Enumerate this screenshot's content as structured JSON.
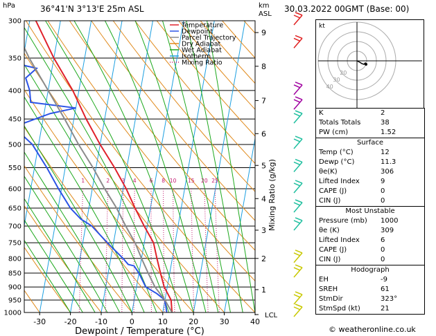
{
  "header": {
    "hpa_label": "hPa",
    "location": "36°41'N  3°13'E  25m  ASL",
    "km_label": "km",
    "asl_label": "ASL",
    "datetime": "30.03.2022  00GMT  (Base: 00)"
  },
  "footer": {
    "copyright": "© weatheronline.co.uk"
  },
  "chart_data": {
    "type": "line",
    "subtype": "skew-T log-p diagram",
    "xlabel": "Dewpoint / Temperature (°C)",
    "ylabel_right": "Mixing Ratio (g/kg)",
    "x_ticks": [
      -30,
      -20,
      -10,
      0,
      10,
      20,
      30,
      40
    ],
    "xlim": [
      -35,
      40
    ],
    "pressure_range": [
      300,
      1000
    ],
    "pressure_ticks": [
      300,
      350,
      400,
      450,
      500,
      550,
      600,
      650,
      700,
      750,
      800,
      850,
      900,
      950,
      1000
    ],
    "km_ticks": [
      {
        "km": "1",
        "p": 910
      },
      {
        "km": "2",
        "p": 800
      },
      {
        "km": "3",
        "p": 712
      },
      {
        "km": "4",
        "p": 625
      },
      {
        "km": "5",
        "p": 545
      },
      {
        "km": "6",
        "p": 478
      },
      {
        "km": "7",
        "p": 417
      },
      {
        "km": "8",
        "p": 362
      },
      {
        "km": "9",
        "p": 315
      }
    ],
    "lcl_label": "LCL",
    "lcl_p": 1000,
    "mixing_ratio_labels": [
      "1",
      "2",
      "3",
      "4",
      "6",
      "8",
      "10",
      "15",
      "20",
      "25"
    ],
    "mixing_ratio_label_p": 590,
    "legend": [
      {
        "name": "Temperature",
        "color": "#e0202a"
      },
      {
        "name": "Dewpoint",
        "color": "#2b53e6"
      },
      {
        "name": "Parcel Trajectory",
        "color": "#8a8a8a"
      },
      {
        "name": "Dry Adiabat",
        "color": "#e08a1c"
      },
      {
        "name": "Wet Adiabat",
        "color": "#1ca81c"
      },
      {
        "name": "Isotherm",
        "color": "#1c9fe0"
      },
      {
        "name": "Mixing Ratio",
        "color": "#c2186f"
      }
    ],
    "series": [
      {
        "name": "Temperature",
        "points": [
          [
            1000,
            13
          ],
          [
            950,
            12
          ],
          [
            900,
            9
          ],
          [
            850,
            7
          ],
          [
            800,
            5
          ],
          [
            750,
            3
          ],
          [
            700,
            -1
          ],
          [
            650,
            -5
          ],
          [
            600,
            -9
          ],
          [
            550,
            -14
          ],
          [
            500,
            -20
          ],
          [
            450,
            -26
          ],
          [
            400,
            -32
          ],
          [
            350,
            -40
          ],
          [
            300,
            -48
          ]
        ]
      },
      {
        "name": "Dewpoint",
        "points": [
          [
            1000,
            11.3
          ],
          [
            950,
            10
          ],
          [
            925,
            7
          ],
          [
            900,
            3
          ],
          [
            850,
            0
          ],
          [
            825,
            -2
          ],
          [
            820,
            -4
          ],
          [
            800,
            -6
          ],
          [
            750,
            -12
          ],
          [
            700,
            -18
          ],
          [
            680,
            -22
          ],
          [
            650,
            -26
          ],
          [
            600,
            -31
          ],
          [
            550,
            -36
          ],
          [
            500,
            -42
          ],
          [
            480,
            -46
          ],
          [
            460,
            -47
          ],
          [
            440,
            -38
          ],
          [
            430,
            -30
          ],
          [
            420,
            -45
          ],
          [
            400,
            -46
          ],
          [
            380,
            -48
          ],
          [
            365,
            -45
          ],
          [
            360,
            -50
          ],
          [
            340,
            -55
          ],
          [
            320,
            -58
          ],
          [
            300,
            -62
          ]
        ]
      },
      {
        "name": "Parcel Trajectory",
        "points": [
          [
            1000,
            13
          ],
          [
            950,
            10
          ],
          [
            900,
            6
          ],
          [
            850,
            3
          ],
          [
            800,
            0
          ],
          [
            750,
            -3
          ],
          [
            700,
            -7
          ],
          [
            650,
            -11
          ],
          [
            600,
            -16
          ],
          [
            550,
            -21
          ],
          [
            500,
            -27
          ],
          [
            450,
            -33
          ],
          [
            400,
            -40
          ],
          [
            350,
            -48
          ],
          [
            300,
            -56
          ]
        ]
      }
    ],
    "wind_barbs": [
      {
        "p": 1000,
        "color": "#c8c800"
      },
      {
        "p": 950,
        "color": "#c8c800"
      },
      {
        "p": 850,
        "color": "#c8c800"
      },
      {
        "p": 800,
        "color": "#c8c800"
      },
      {
        "p": 700,
        "color": "#1fbf9f"
      },
      {
        "p": 650,
        "color": "#1fbf9f"
      },
      {
        "p": 600,
        "color": "#1fbf9f"
      },
      {
        "p": 550,
        "color": "#1fbf9f"
      },
      {
        "p": 500,
        "color": "#1fbf9f"
      },
      {
        "p": 450,
        "color": "#1fbf9f"
      },
      {
        "p": 425,
        "color": "#a000a0"
      },
      {
        "p": 400,
        "color": "#a000a0"
      },
      {
        "p": 330,
        "color": "#e02020"
      },
      {
        "p": 300,
        "color": "#e02020"
      }
    ]
  },
  "hodograph": {
    "title": "kt",
    "ring_labels": [
      "20",
      "30",
      "40"
    ],
    "trace": [
      [
        0,
        0
      ],
      [
        4,
        -2
      ],
      [
        7,
        -4
      ],
      [
        10,
        -5
      ],
      [
        12,
        -3
      ],
      [
        13,
        -5
      ]
    ]
  },
  "indices": {
    "rows": [
      {
        "label": "K",
        "value": "2"
      },
      {
        "label": "Totals Totals",
        "value": "38"
      },
      {
        "label": "PW (cm)",
        "value": "1.52"
      }
    ]
  },
  "surface": {
    "title": "Surface",
    "rows": [
      {
        "label": "Temp (°C)",
        "value": "12"
      },
      {
        "label": "Dewp (°C)",
        "value": "11.3"
      },
      {
        "label": "θe(K)",
        "value": "306"
      },
      {
        "label": "Lifted Index",
        "value": "9"
      },
      {
        "label": "CAPE (J)",
        "value": "0"
      },
      {
        "label": "CIN (J)",
        "value": "0"
      }
    ]
  },
  "most_unstable": {
    "title": "Most Unstable",
    "rows": [
      {
        "label": "Pressure (mb)",
        "value": "1000"
      },
      {
        "label": "θe (K)",
        "value": "309"
      },
      {
        "label": "Lifted Index",
        "value": "6"
      },
      {
        "label": "CAPE (J)",
        "value": "0"
      },
      {
        "label": "CIN (J)",
        "value": "0"
      }
    ]
  },
  "hodograph_stats": {
    "title": "Hodograph",
    "rows": [
      {
        "label": "EH",
        "value": "-9"
      },
      {
        "label": "SREH",
        "value": "61"
      },
      {
        "label": "StmDir",
        "value": "323°"
      },
      {
        "label": "StmSpd (kt)",
        "value": "21"
      }
    ]
  }
}
